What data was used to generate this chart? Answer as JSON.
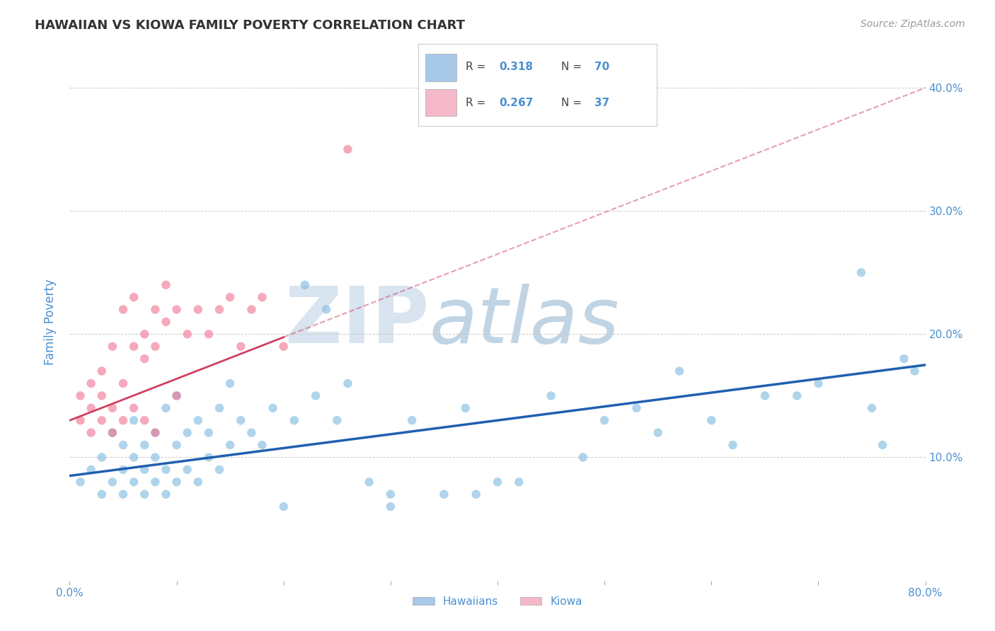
{
  "title": "HAWAIIAN VS KIOWA FAMILY POVERTY CORRELATION CHART",
  "source_text": "Source: ZipAtlas.com",
  "ylabel": "Family Poverty",
  "xlim": [
    0.0,
    0.8
  ],
  "ylim": [
    0.0,
    0.42
  ],
  "xticks": [
    0.0,
    0.1,
    0.2,
    0.3,
    0.4,
    0.5,
    0.6,
    0.7,
    0.8
  ],
  "yticks": [
    0.0,
    0.1,
    0.2,
    0.3,
    0.4
  ],
  "hawaiian_R": 0.318,
  "hawaiian_N": 70,
  "kiowa_R": 0.267,
  "kiowa_N": 37,
  "hawaiian_color": "#a8c8e8",
  "hawaiian_dot_color": "#7ab8de",
  "kiowa_color": "#f4b8c8",
  "kiowa_dot_color": "#f07090",
  "trend_hawaiian_color": "#2060b0",
  "trend_kiowa_color": "#d04060",
  "background_color": "#ffffff",
  "grid_color": "#cccccc",
  "title_color": "#333333",
  "axis_label_color": "#4a90d0",
  "watermark_color": "#c8d8e8",
  "legend_text_color": "#4a90d0",
  "hawaiian_scatter_x": [
    0.01,
    0.02,
    0.03,
    0.03,
    0.04,
    0.04,
    0.05,
    0.05,
    0.05,
    0.06,
    0.06,
    0.06,
    0.07,
    0.07,
    0.07,
    0.08,
    0.08,
    0.08,
    0.09,
    0.09,
    0.09,
    0.1,
    0.1,
    0.1,
    0.11,
    0.11,
    0.12,
    0.12,
    0.13,
    0.13,
    0.14,
    0.14,
    0.15,
    0.15,
    0.16,
    0.17,
    0.18,
    0.19,
    0.2,
    0.21,
    0.22,
    0.23,
    0.24,
    0.25,
    0.26,
    0.28,
    0.3,
    0.3,
    0.32,
    0.35,
    0.37,
    0.38,
    0.4,
    0.42,
    0.45,
    0.48,
    0.5,
    0.53,
    0.55,
    0.57,
    0.6,
    0.62,
    0.65,
    0.68,
    0.7,
    0.74,
    0.75,
    0.76,
    0.78,
    0.79
  ],
  "hawaiian_scatter_y": [
    0.08,
    0.09,
    0.07,
    0.1,
    0.08,
    0.12,
    0.07,
    0.09,
    0.11,
    0.08,
    0.1,
    0.13,
    0.07,
    0.09,
    0.11,
    0.08,
    0.1,
    0.12,
    0.07,
    0.09,
    0.14,
    0.08,
    0.11,
    0.15,
    0.09,
    0.12,
    0.08,
    0.13,
    0.1,
    0.12,
    0.09,
    0.14,
    0.11,
    0.16,
    0.13,
    0.12,
    0.11,
    0.14,
    0.06,
    0.13,
    0.24,
    0.15,
    0.22,
    0.13,
    0.16,
    0.08,
    0.06,
    0.07,
    0.13,
    0.07,
    0.14,
    0.07,
    0.08,
    0.08,
    0.15,
    0.1,
    0.13,
    0.14,
    0.12,
    0.17,
    0.13,
    0.11,
    0.15,
    0.15,
    0.16,
    0.25,
    0.14,
    0.11,
    0.18,
    0.17
  ],
  "kiowa_scatter_x": [
    0.01,
    0.01,
    0.02,
    0.02,
    0.02,
    0.03,
    0.03,
    0.03,
    0.04,
    0.04,
    0.04,
    0.05,
    0.05,
    0.05,
    0.06,
    0.06,
    0.06,
    0.07,
    0.07,
    0.07,
    0.08,
    0.08,
    0.08,
    0.09,
    0.09,
    0.1,
    0.1,
    0.11,
    0.12,
    0.13,
    0.14,
    0.15,
    0.16,
    0.17,
    0.18,
    0.2,
    0.26
  ],
  "kiowa_scatter_y": [
    0.13,
    0.15,
    0.12,
    0.14,
    0.16,
    0.13,
    0.15,
    0.17,
    0.12,
    0.14,
    0.19,
    0.13,
    0.16,
    0.22,
    0.19,
    0.23,
    0.14,
    0.18,
    0.2,
    0.13,
    0.19,
    0.22,
    0.12,
    0.21,
    0.24,
    0.22,
    0.15,
    0.2,
    0.22,
    0.2,
    0.22,
    0.23,
    0.19,
    0.22,
    0.23,
    0.19,
    0.35
  ],
  "kiowa_trend_x0": 0.0,
  "kiowa_trend_x1": 0.8,
  "kiowa_trend_y0": 0.13,
  "kiowa_trend_y1": 0.4,
  "hawaiian_trend_x0": 0.0,
  "hawaiian_trend_x1": 0.8,
  "hawaiian_trend_y0": 0.085,
  "hawaiian_trend_y1": 0.175
}
